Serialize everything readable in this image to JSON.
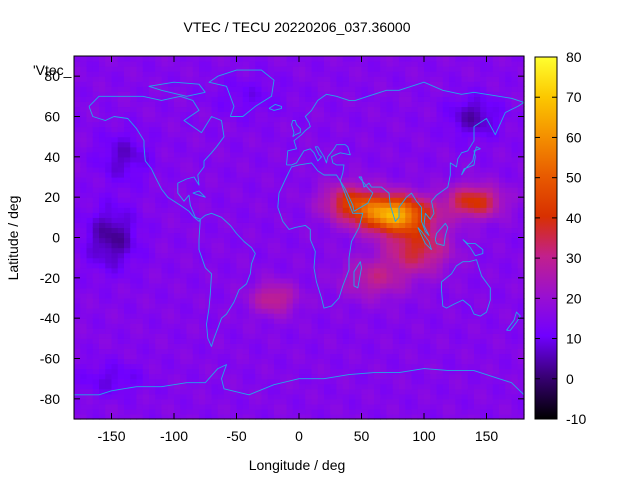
{
  "chart_data": {
    "type": "heatmap",
    "title": "VTEC / TECU 20220206_037.36000",
    "xlabel": "Longitude / deg",
    "ylabel": "Latitude / deg",
    "series_label": "'Vtec_",
    "xlim": [
      -180,
      180
    ],
    "ylim": [
      -90,
      90
    ],
    "x_ticks": [
      -150,
      -100,
      -50,
      0,
      50,
      100,
      150
    ],
    "y_ticks": [
      -80,
      -60,
      -40,
      -20,
      0,
      20,
      40,
      60,
      80
    ],
    "colorbar": {
      "range": [
        -10,
        80
      ],
      "ticks": [
        -10,
        0,
        10,
        20,
        30,
        40,
        50,
        60,
        70,
        80
      ],
      "palette": "black-purple-red-orange-yellow"
    },
    "background_level": 15,
    "features": [
      {
        "lon": 75,
        "lat": 12,
        "amplitude": 50,
        "spread_lon": 28,
        "spread_lat": 9
      },
      {
        "lon": 95,
        "lat": -5,
        "amplitude": 22,
        "spread_lon": 25,
        "spread_lat": 12
      },
      {
        "lon": 140,
        "lat": 18,
        "amplitude": 26,
        "spread_lon": 22,
        "spread_lat": 8
      },
      {
        "lon": 40,
        "lat": 18,
        "amplitude": 22,
        "spread_lon": 22,
        "spread_lat": 9
      },
      {
        "lon": 60,
        "lat": -20,
        "amplitude": 14,
        "spread_lon": 25,
        "spread_lat": 10
      },
      {
        "lon": -20,
        "lat": -30,
        "amplitude": 16,
        "spread_lon": 18,
        "spread_lat": 8
      },
      {
        "lon": -150,
        "lat": 0,
        "amplitude": -12,
        "spread_lon": 20,
        "spread_lat": 15
      },
      {
        "lon": -140,
        "lat": 40,
        "amplitude": -8,
        "spread_lon": 20,
        "spread_lat": 12
      },
      {
        "lon": 140,
        "lat": 60,
        "amplitude": -10,
        "spread_lon": 20,
        "spread_lat": 10
      },
      {
        "lon": -150,
        "lat": -70,
        "amplitude": -6,
        "spread_lon": 25,
        "spread_lat": 8
      },
      {
        "lon": -40,
        "lat": 70,
        "amplitude": -4,
        "spread_lon": 30,
        "spread_lat": 10
      }
    ]
  },
  "colors": {
    "coastline": "#22a8e8",
    "frame": "#000000"
  }
}
